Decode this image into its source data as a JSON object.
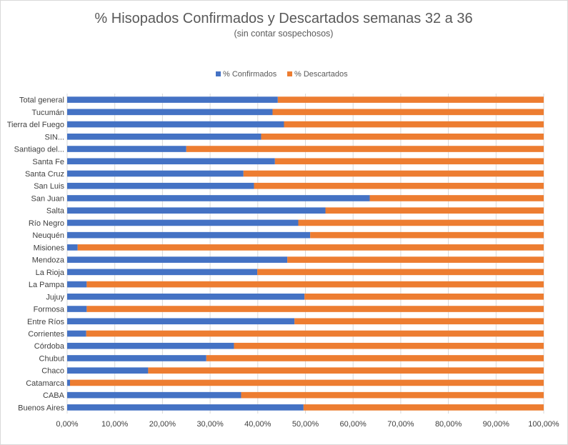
{
  "chart_data": {
    "type": "bar",
    "orientation": "horizontal",
    "stacked": true,
    "title": "% Hisopados Confirmados y Descartados semanas 32 a 36",
    "subtitle": "(sin contar sospechosos)",
    "legend_position": "top",
    "grid": true,
    "xlim": [
      0,
      100
    ],
    "x_ticks": [
      "0,00%",
      "10,00%",
      "20,00%",
      "30,00%",
      "40,00%",
      "50,00%",
      "60,00%",
      "70,00%",
      "80,00%",
      "90,00%",
      "100,00%"
    ],
    "categories": [
      "Total general",
      "Tucumán",
      "Tierra del Fuego",
      "SIN...",
      "Santiago del...",
      "Santa Fe",
      "Santa Cruz",
      "San Luis",
      "San Juan",
      "Salta",
      "Río Negro",
      "Neuquén",
      "Misiones",
      "Mendoza",
      "La Rioja",
      "La Pampa",
      "Jujuy",
      "Formosa",
      "Entre Ríos",
      "Corrientes",
      "Córdoba",
      "Chubut",
      "Chaco",
      "Catamarca",
      "CABA",
      "Buenos Aires"
    ],
    "series": [
      {
        "name": "% Confirmados",
        "color": "#4472c4",
        "values": [
          44.2,
          43.1,
          45.5,
          40.7,
          25.0,
          43.6,
          37.0,
          39.2,
          63.5,
          54.2,
          48.5,
          51.0,
          2.2,
          46.2,
          39.9,
          4.1,
          49.8,
          4.1,
          47.7,
          4.0,
          35.0,
          29.2,
          17.0,
          0.6,
          36.5,
          49.6
        ]
      },
      {
        "name": "% Descartados",
        "color": "#ed7d31",
        "values": [
          55.8,
          56.9,
          54.5,
          59.3,
          75.0,
          56.4,
          63.0,
          60.8,
          36.5,
          45.8,
          51.5,
          49.0,
          97.8,
          53.8,
          60.1,
          95.9,
          50.2,
          95.9,
          52.3,
          96.0,
          65.0,
          70.8,
          83.0,
          99.4,
          63.5,
          50.4
        ]
      }
    ]
  }
}
